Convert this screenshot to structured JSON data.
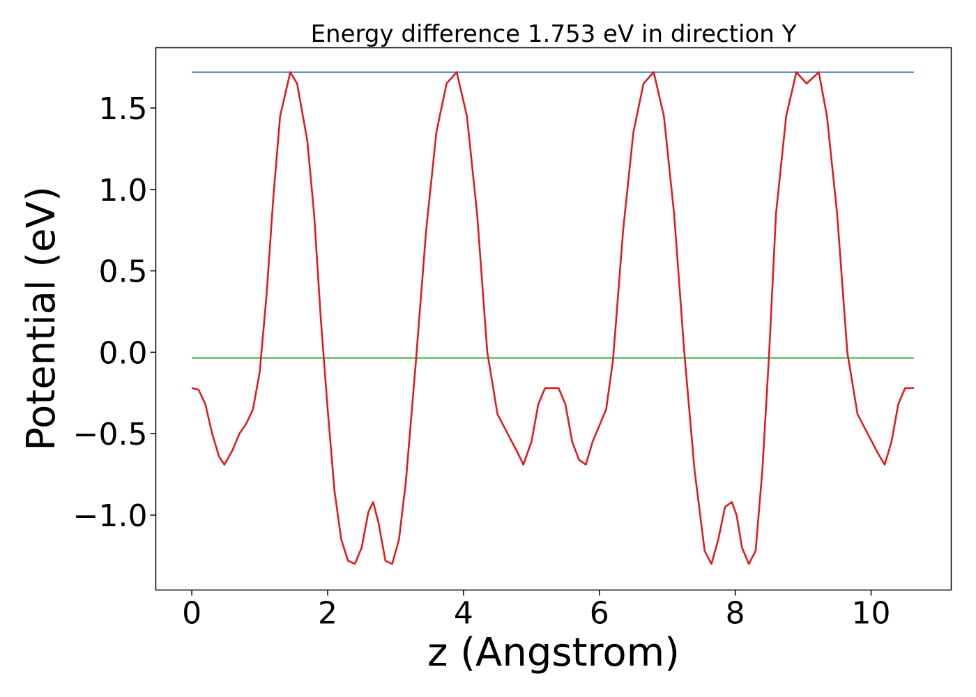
{
  "chart_data": {
    "type": "line",
    "title": "Energy difference 1.753 eV in direction Y",
    "xlabel": "z (Angstrom)",
    "ylabel": "Potential (eV)",
    "xlim": [
      -0.53,
      11.18
    ],
    "ylim": [
      -1.46,
      1.87
    ],
    "xticks": [
      0,
      2,
      4,
      6,
      8,
      10
    ],
    "xtick_labels": [
      "0",
      "2",
      "4",
      "6",
      "8",
      "10"
    ],
    "yticks": [
      -1.0,
      -0.5,
      0.0,
      0.5,
      1.0,
      1.5
    ],
    "ytick_labels": [
      "−1.0",
      "−0.5",
      "0.0",
      "0.5",
      "1.0",
      "1.5"
    ],
    "grid": false,
    "colors": {
      "potential": "#e31a1c",
      "max_line": "#1f77b4",
      "avg_line": "#2ca02c"
    },
    "series": [
      {
        "key": "potential",
        "x": [
          0.0,
          0.1,
          0.2,
          0.3,
          0.4,
          0.48,
          0.6,
          0.7,
          0.8,
          0.9,
          1.0,
          1.1,
          1.2,
          1.3,
          1.45,
          1.55,
          1.7,
          1.8,
          1.9,
          2.0,
          2.1,
          2.2,
          2.3,
          2.4,
          2.5,
          2.6,
          2.67,
          2.75,
          2.85,
          2.95,
          3.05,
          3.15,
          3.3,
          3.45,
          3.6,
          3.75,
          3.9,
          4.05,
          4.2,
          4.35,
          4.5,
          4.65,
          4.8,
          4.88,
          5.0,
          5.1,
          5.2,
          5.3,
          5.4,
          5.5,
          5.6,
          5.7,
          5.8,
          5.9,
          6.0,
          6.1,
          6.2,
          6.35,
          6.5,
          6.65,
          6.8,
          6.95,
          7.1,
          7.25,
          7.4,
          7.55,
          7.65,
          7.75,
          7.85,
          7.95,
          8.02,
          8.1,
          8.2,
          8.3,
          8.4,
          8.5,
          8.6,
          8.75,
          8.9,
          9.05,
          9.23,
          9.35,
          9.5,
          9.65,
          9.8,
          9.95,
          10.1,
          10.2,
          10.3,
          10.4,
          10.5,
          10.63
        ],
        "y": [
          -0.22,
          -0.23,
          -0.32,
          -0.5,
          -0.64,
          -0.69,
          -0.6,
          -0.5,
          -0.44,
          -0.35,
          -0.12,
          0.35,
          0.95,
          1.45,
          1.72,
          1.65,
          1.3,
          0.85,
          0.2,
          -0.35,
          -0.85,
          -1.15,
          -1.28,
          -1.3,
          -1.2,
          -0.98,
          -0.92,
          -1.05,
          -1.28,
          -1.3,
          -1.15,
          -0.8,
          -0.05,
          0.75,
          1.35,
          1.65,
          1.72,
          1.45,
          0.85,
          0.0,
          -0.38,
          -0.5,
          -0.62,
          -0.69,
          -0.55,
          -0.32,
          -0.22,
          -0.22,
          -0.22,
          -0.32,
          -0.55,
          -0.66,
          -0.69,
          -0.55,
          -0.45,
          -0.35,
          -0.05,
          0.75,
          1.35,
          1.65,
          1.72,
          1.45,
          0.85,
          0.0,
          -0.72,
          -1.22,
          -1.3,
          -1.15,
          -0.95,
          -0.92,
          -1.0,
          -1.2,
          -1.3,
          -1.22,
          -0.72,
          0.0,
          0.85,
          1.45,
          1.72,
          1.65,
          1.72,
          1.45,
          0.85,
          0.0,
          -0.38,
          -0.5,
          -0.62,
          -0.69,
          -0.55,
          -0.32,
          -0.22,
          -0.22
        ]
      },
      {
        "key": "max_line",
        "x": [
          0.0,
          10.63
        ],
        "y": [
          1.72,
          1.72
        ]
      },
      {
        "key": "avg_line",
        "x": [
          0.0,
          10.63
        ],
        "y": [
          -0.035,
          -0.035
        ]
      }
    ]
  }
}
